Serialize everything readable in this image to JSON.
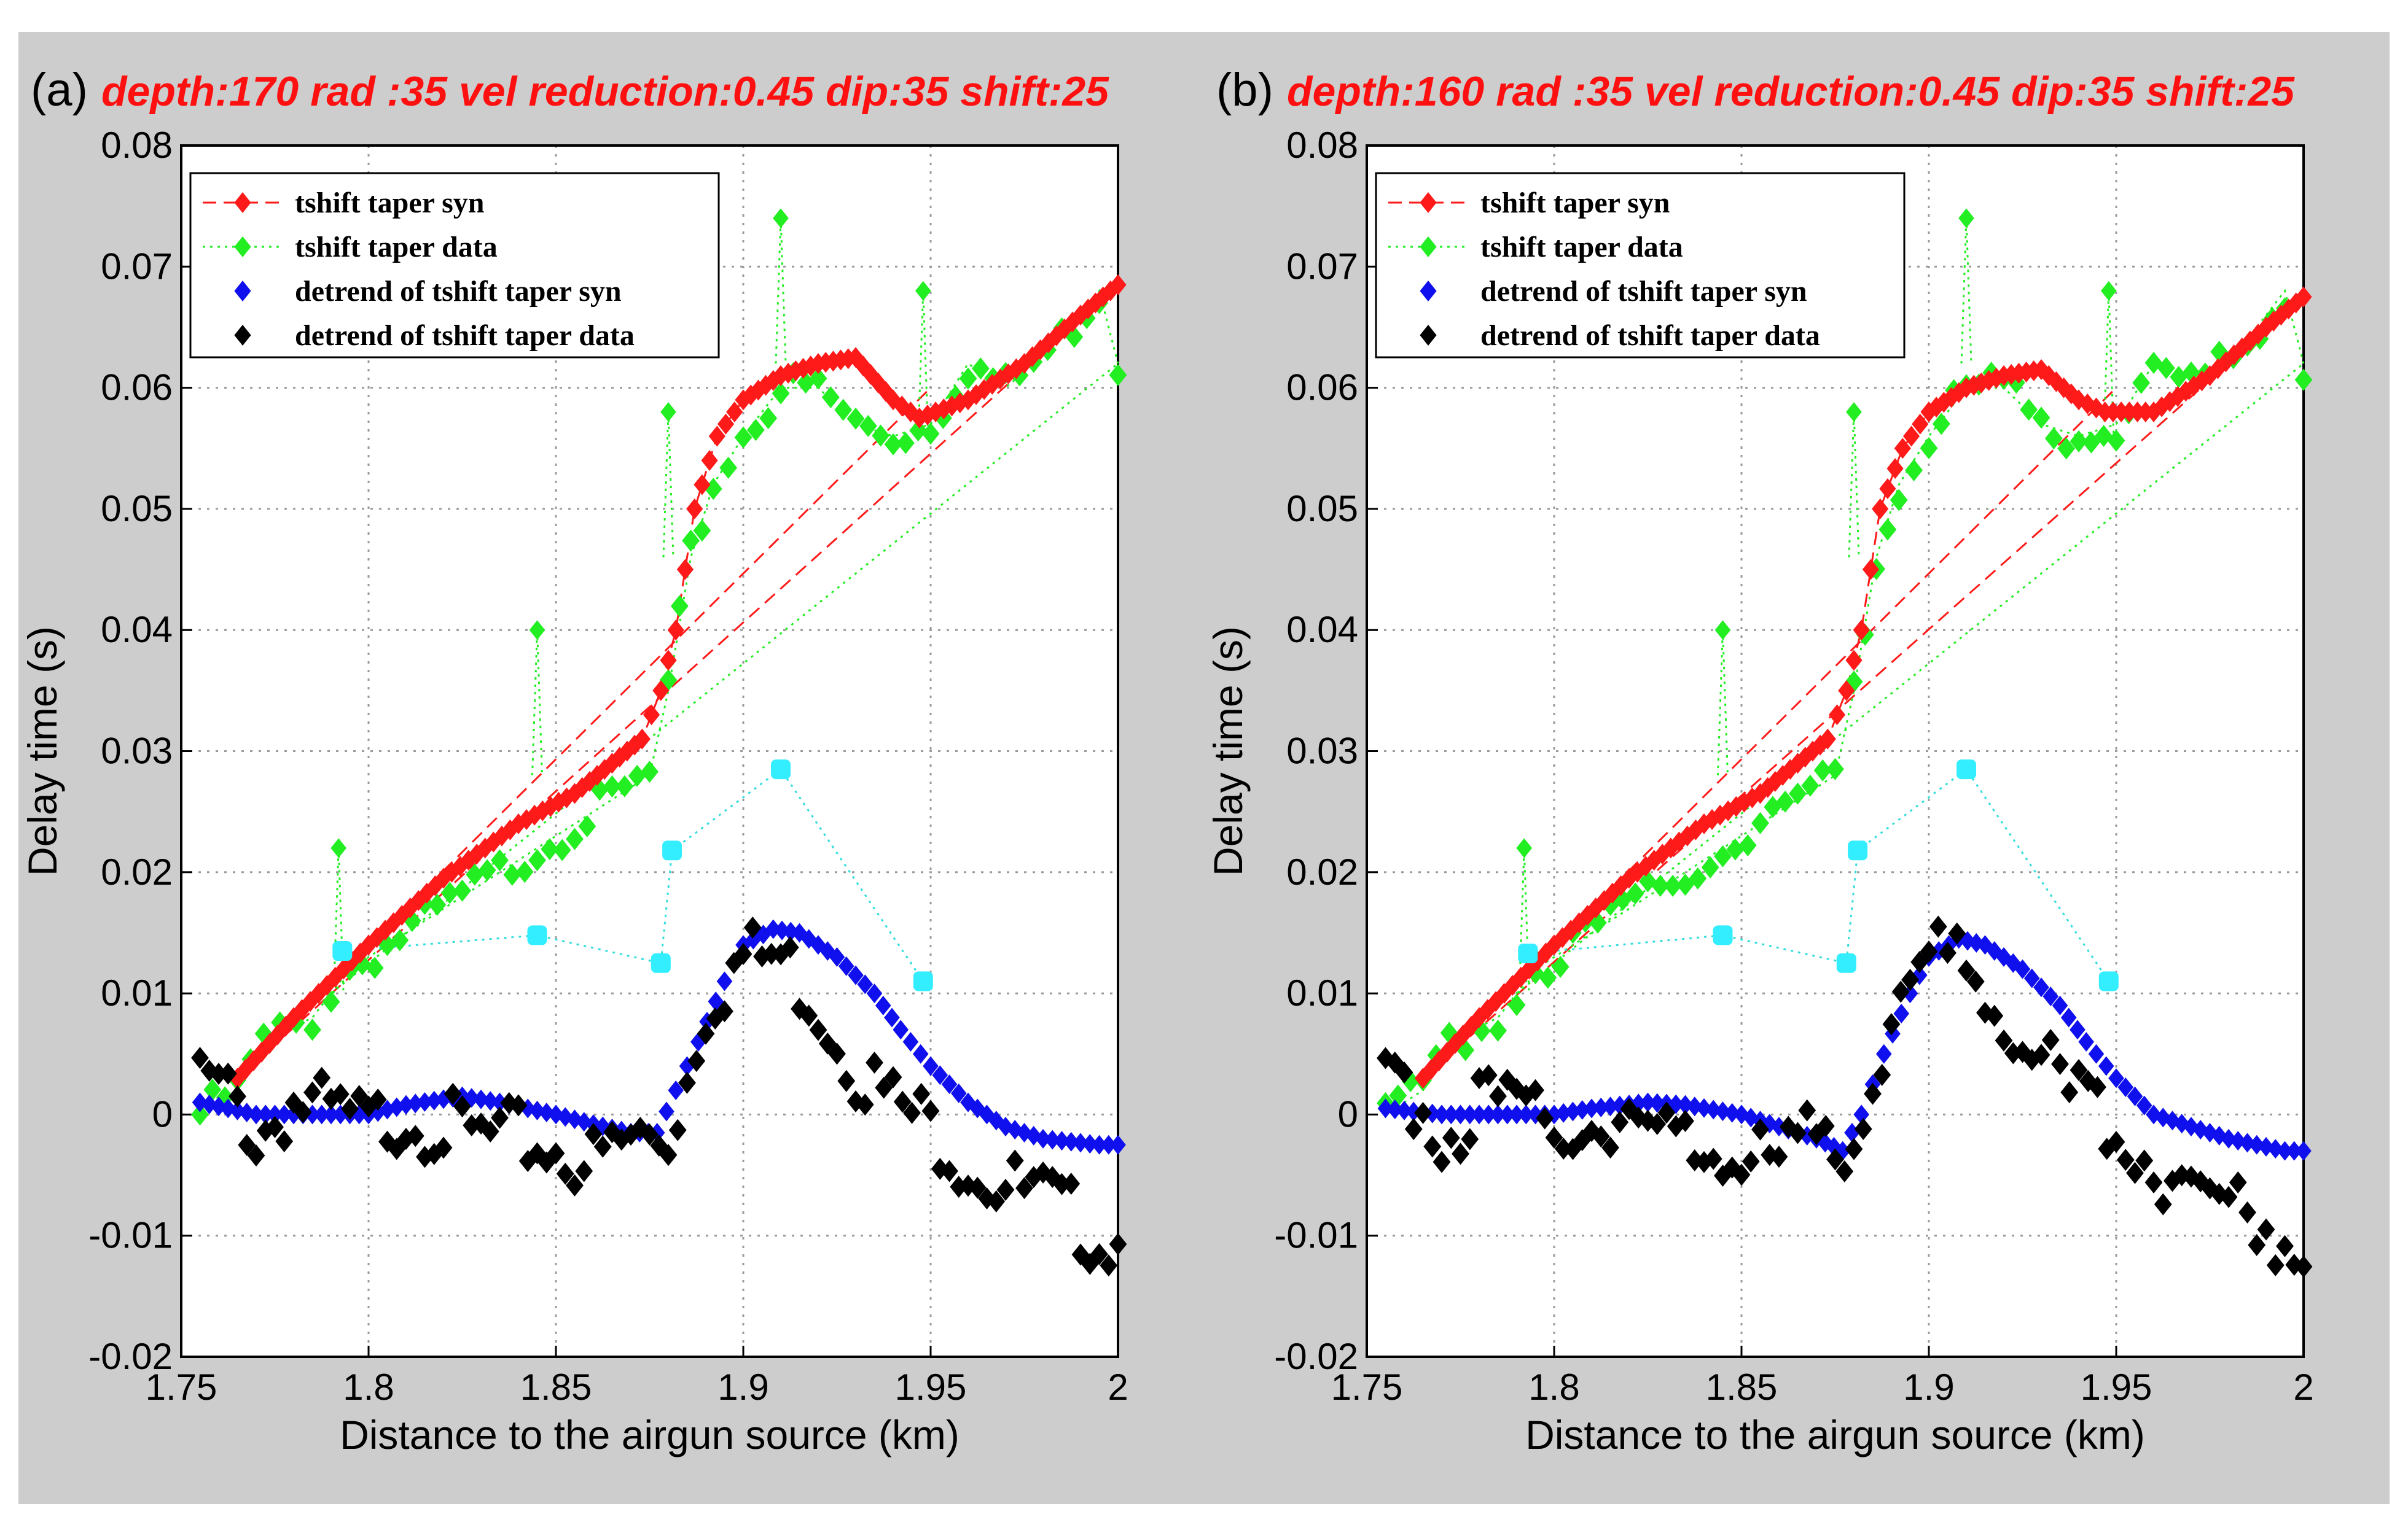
{
  "chart_data": [
    {
      "type": "scatter",
      "panel_tag": "(a)",
      "title": "depth:170 rad :35 vel reduction:0.45 dip:35 shift:25",
      "xlabel": "Distance to the airgun source (km)",
      "ylabel": "Delay time (s)",
      "xlim": [
        1.75,
        2.0
      ],
      "ylim": [
        -0.02,
        0.08
      ],
      "xticks": [
        "1.75",
        "1.8",
        "1.85",
        "1.9",
        "1.95",
        "2"
      ],
      "yticks": [
        "-0.02",
        "-0.01",
        "0",
        "0.01",
        "0.02",
        "0.03",
        "0.04",
        "0.05",
        "0.06",
        "0.07",
        "0.08"
      ],
      "grid": true,
      "legend_position": "top-left",
      "legend": [
        {
          "name": "tshift taper syn",
          "color": "#ff1a1a",
          "line": "dashed"
        },
        {
          "name": "tshift taper data",
          "color": "#22ee22",
          "line": "dotted"
        },
        {
          "name": "detrend of tshift taper syn",
          "color": "#1010ee",
          "line": "none"
        },
        {
          "name": "detrend of tshift taper data",
          "color": "#000000",
          "line": "none"
        }
      ],
      "curves": {
        "syn": [
          [
            1.765,
            0.003
          ],
          [
            1.78,
            0.008
          ],
          [
            1.8,
            0.014
          ],
          [
            1.82,
            0.0195
          ],
          [
            1.84,
            0.024
          ],
          [
            1.855,
            0.0265
          ],
          [
            1.865,
            0.029
          ],
          [
            1.873,
            0.031
          ],
          [
            1.878,
            0.035
          ],
          [
            1.882,
            0.04
          ],
          [
            1.887,
            0.05
          ],
          [
            1.893,
            0.056
          ],
          [
            1.9,
            0.059
          ],
          [
            1.91,
            0.061
          ],
          [
            1.92,
            0.062
          ],
          [
            1.93,
            0.0625
          ],
          [
            1.94,
            0.059
          ],
          [
            1.947,
            0.0575
          ],
          [
            1.96,
            0.059
          ],
          [
            1.975,
            0.062
          ],
          [
            1.99,
            0.066
          ],
          [
            2.0,
            0.0685
          ]
        ],
        "data": [
          [
            1.755,
            0.0
          ],
          [
            1.765,
            0.002
          ],
          [
            1.772,
            0.006
          ],
          [
            1.785,
            0.008
          ],
          [
            1.79,
            0.01
          ],
          [
            1.795,
            0.012
          ],
          [
            1.805,
            0.014
          ],
          [
            1.815,
            0.016
          ],
          [
            1.825,
            0.018
          ],
          [
            1.835,
            0.02
          ],
          [
            1.845,
            0.022
          ],
          [
            1.855,
            0.024
          ],
          [
            1.865,
            0.026
          ],
          [
            1.875,
            0.028
          ],
          [
            1.88,
            0.035
          ],
          [
            1.886,
            0.046
          ],
          [
            1.892,
            0.052
          ],
          [
            1.9,
            0.056
          ],
          [
            1.91,
            0.06
          ],
          [
            1.92,
            0.06
          ],
          [
            1.93,
            0.057
          ],
          [
            1.94,
            0.056
          ],
          [
            1.95,
            0.057
          ],
          [
            1.96,
            0.062
          ],
          [
            1.97,
            0.06
          ],
          [
            1.985,
            0.064
          ],
          [
            1.995,
            0.068
          ],
          [
            2.0,
            0.062
          ]
        ],
        "detrend_syn": [
          [
            1.755,
            0.001
          ],
          [
            1.77,
            0.0
          ],
          [
            1.785,
            0.0
          ],
          [
            1.8,
            0.0
          ],
          [
            1.81,
            0.0008
          ],
          [
            1.825,
            0.0015
          ],
          [
            1.835,
            0.001
          ],
          [
            1.85,
            0.0
          ],
          [
            1.86,
            -0.0008
          ],
          [
            1.87,
            -0.0015
          ],
          [
            1.877,
            -0.0015
          ],
          [
            1.882,
            0.002
          ],
          [
            1.888,
            0.006
          ],
          [
            1.895,
            0.011
          ],
          [
            1.9,
            0.014
          ],
          [
            1.908,
            0.0153
          ],
          [
            1.915,
            0.015
          ],
          [
            1.925,
            0.013
          ],
          [
            1.935,
            0.01
          ],
          [
            1.942,
            0.007
          ],
          [
            1.95,
            0.004
          ],
          [
            1.96,
            0.001
          ],
          [
            1.97,
            -0.001
          ],
          [
            1.98,
            -0.002
          ],
          [
            1.995,
            -0.0025
          ],
          [
            2.0,
            -0.0025
          ]
        ],
        "detrend_data": [
          [
            1.755,
            0.003
          ],
          [
            1.765,
            0.001
          ],
          [
            1.77,
            -0.002
          ],
          [
            1.78,
            0.001
          ],
          [
            1.79,
            0.0
          ],
          [
            1.8,
            -0.001
          ],
          [
            1.81,
            0.0
          ],
          [
            1.82,
            -0.001
          ],
          [
            1.83,
            -0.002
          ],
          [
            1.84,
            -0.002
          ],
          [
            1.85,
            -0.003
          ],
          [
            1.86,
            -0.004
          ],
          [
            1.87,
            -0.002
          ],
          [
            1.88,
            -0.002
          ],
          [
            1.885,
            0.003
          ],
          [
            1.89,
            0.009
          ],
          [
            1.9,
            0.013
          ],
          [
            1.91,
            0.013
          ],
          [
            1.92,
            0.009
          ],
          [
            1.93,
            0.004
          ],
          [
            1.94,
            0.001
          ],
          [
            1.95,
            -0.001
          ],
          [
            1.96,
            -0.004
          ],
          [
            1.97,
            -0.006
          ],
          [
            1.98,
            -0.007
          ],
          [
            1.995,
            -0.01
          ],
          [
            2.0,
            -0.0105
          ]
        ]
      },
      "spikes_data": [
        [
          1.792,
          0.022
        ],
        [
          1.845,
          0.04
        ],
        [
          1.88,
          0.058
        ],
        [
          1.91,
          0.074
        ],
        [
          1.948,
          0.068
        ]
      ],
      "cyan_points": [
        [
          1.793,
          0.0135
        ],
        [
          1.845,
          0.0148
        ],
        [
          1.878,
          0.0125
        ],
        [
          1.881,
          0.0218
        ],
        [
          1.91,
          0.0285
        ],
        [
          1.948,
          0.011
        ]
      ]
    },
    {
      "type": "scatter",
      "panel_tag": "(b)",
      "title": "depth:160 rad :35 vel reduction:0.45 dip:35 shift:25",
      "xlabel": "Distance to the airgun source (km)",
      "ylabel": "Delay time (s)",
      "xlim": [
        1.75,
        2.0
      ],
      "ylim": [
        -0.02,
        0.08
      ],
      "xticks": [
        "1.75",
        "1.8",
        "1.85",
        "1.9",
        "1.95",
        "2"
      ],
      "yticks": [
        "-0.02",
        "-0.01",
        "0",
        "0.01",
        "0.02",
        "0.03",
        "0.04",
        "0.05",
        "0.06",
        "0.07",
        "0.08"
      ],
      "grid": true,
      "legend_position": "top-left",
      "legend": [
        {
          "name": "tshift taper syn",
          "color": "#ff1a1a",
          "line": "dashed"
        },
        {
          "name": "tshift taper data",
          "color": "#22ee22",
          "line": "dotted"
        },
        {
          "name": "detrend of tshift taper syn",
          "color": "#1010ee",
          "line": "none"
        },
        {
          "name": "detrend of tshift taper data",
          "color": "#000000",
          "line": "none"
        }
      ],
      "curves": {
        "syn": [
          [
            1.765,
            0.003
          ],
          [
            1.78,
            0.008
          ],
          [
            1.8,
            0.014
          ],
          [
            1.82,
            0.0195
          ],
          [
            1.84,
            0.024
          ],
          [
            1.855,
            0.0265
          ],
          [
            1.865,
            0.029
          ],
          [
            1.873,
            0.031
          ],
          [
            1.878,
            0.035
          ],
          [
            1.882,
            0.04
          ],
          [
            1.887,
            0.05
          ],
          [
            1.893,
            0.055
          ],
          [
            1.9,
            0.058
          ],
          [
            1.91,
            0.06
          ],
          [
            1.92,
            0.061
          ],
          [
            1.93,
            0.0615
          ],
          [
            1.94,
            0.059
          ],
          [
            1.947,
            0.058
          ],
          [
            1.96,
            0.058
          ],
          [
            1.975,
            0.061
          ],
          [
            1.99,
            0.065
          ],
          [
            2.0,
            0.0675
          ]
        ],
        "data": [
          [
            1.755,
            0.0
          ],
          [
            1.765,
            0.002
          ],
          [
            1.772,
            0.006
          ],
          [
            1.785,
            0.008
          ],
          [
            1.79,
            0.01
          ],
          [
            1.795,
            0.012
          ],
          [
            1.805,
            0.014
          ],
          [
            1.815,
            0.016
          ],
          [
            1.825,
            0.018
          ],
          [
            1.835,
            0.02
          ],
          [
            1.845,
            0.022
          ],
          [
            1.855,
            0.024
          ],
          [
            1.865,
            0.026
          ],
          [
            1.875,
            0.028
          ],
          [
            1.88,
            0.035
          ],
          [
            1.886,
            0.046
          ],
          [
            1.892,
            0.052
          ],
          [
            1.9,
            0.056
          ],
          [
            1.91,
            0.06
          ],
          [
            1.92,
            0.06
          ],
          [
            1.93,
            0.057
          ],
          [
            1.94,
            0.056
          ],
          [
            1.95,
            0.057
          ],
          [
            1.96,
            0.062
          ],
          [
            1.97,
            0.06
          ],
          [
            1.985,
            0.064
          ],
          [
            1.995,
            0.068
          ],
          [
            2.0,
            0.062
          ]
        ],
        "detrend_syn": [
          [
            1.755,
            0.0005
          ],
          [
            1.77,
            0.0
          ],
          [
            1.785,
            0.0
          ],
          [
            1.8,
            0.0
          ],
          [
            1.81,
            0.0005
          ],
          [
            1.825,
            0.001
          ],
          [
            1.835,
            0.0008
          ],
          [
            1.85,
            0.0
          ],
          [
            1.86,
            -0.001
          ],
          [
            1.87,
            -0.002
          ],
          [
            1.877,
            -0.003
          ],
          [
            1.882,
            0.0
          ],
          [
            1.888,
            0.005
          ],
          [
            1.895,
            0.01
          ],
          [
            1.9,
            0.013
          ],
          [
            1.908,
            0.0145
          ],
          [
            1.915,
            0.014
          ],
          [
            1.925,
            0.012
          ],
          [
            1.935,
            0.009
          ],
          [
            1.942,
            0.006
          ],
          [
            1.95,
            0.003
          ],
          [
            1.96,
            0.0
          ],
          [
            1.97,
            -0.001
          ],
          [
            1.98,
            -0.002
          ],
          [
            1.995,
            -0.003
          ],
          [
            2.0,
            -0.003
          ]
        ],
        "detrend_data": [
          [
            1.755,
            0.003
          ],
          [
            1.765,
            0.001
          ],
          [
            1.77,
            -0.002
          ],
          [
            1.78,
            0.001
          ],
          [
            1.79,
            0.0
          ],
          [
            1.8,
            -0.001
          ],
          [
            1.81,
            0.0
          ],
          [
            1.82,
            -0.001
          ],
          [
            1.83,
            -0.002
          ],
          [
            1.84,
            -0.002
          ],
          [
            1.85,
            -0.003
          ],
          [
            1.86,
            -0.004
          ],
          [
            1.87,
            -0.002
          ],
          [
            1.88,
            -0.002
          ],
          [
            1.885,
            0.003
          ],
          [
            1.89,
            0.009
          ],
          [
            1.9,
            0.013
          ],
          [
            1.91,
            0.013
          ],
          [
            1.92,
            0.009
          ],
          [
            1.93,
            0.004
          ],
          [
            1.94,
            0.001
          ],
          [
            1.95,
            -0.001
          ],
          [
            1.96,
            -0.004
          ],
          [
            1.97,
            -0.006
          ],
          [
            1.98,
            -0.007
          ],
          [
            1.995,
            -0.01
          ],
          [
            2.0,
            -0.0105
          ]
        ]
      },
      "spikes_data": [
        [
          1.792,
          0.022
        ],
        [
          1.845,
          0.04
        ],
        [
          1.88,
          0.058
        ],
        [
          1.91,
          0.074
        ],
        [
          1.948,
          0.068
        ]
      ],
      "cyan_points": [
        [
          1.793,
          0.0133
        ],
        [
          1.845,
          0.0148
        ],
        [
          1.878,
          0.0125
        ],
        [
          1.881,
          0.0218
        ],
        [
          1.91,
          0.0285
        ],
        [
          1.948,
          0.011
        ]
      ]
    }
  ]
}
